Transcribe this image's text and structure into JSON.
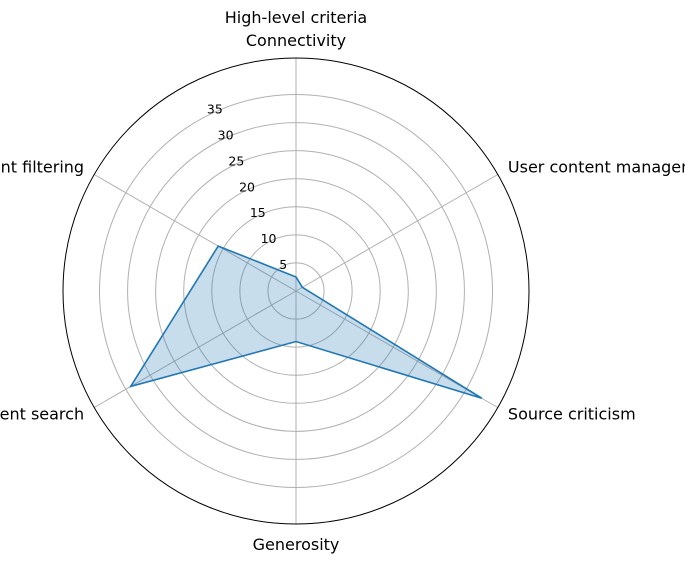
{
  "chart_data": {
    "type": "radar",
    "title": "High-level criteria",
    "categories": [
      "Connectivity",
      "User content management/exploration",
      "Source criticism",
      "Generosity",
      "Content search",
      "Content filtering"
    ],
    "series": [
      {
        "values": [
          2.5,
          1.3,
          38.2,
          9.0,
          34.0,
          16.0
        ]
      }
    ],
    "rlim": [
      0,
      41.5
    ],
    "rticks": [
      5,
      10,
      15,
      20,
      25,
      30,
      35
    ],
    "rtick_labels": [
      "5",
      "10",
      "15",
      "20",
      "25",
      "30",
      "35"
    ],
    "grid": true,
    "colors": {
      "line": "#1f77b4",
      "fill": "#1f77b4",
      "grid": "#b0b0b0",
      "frame": "#000000"
    }
  }
}
